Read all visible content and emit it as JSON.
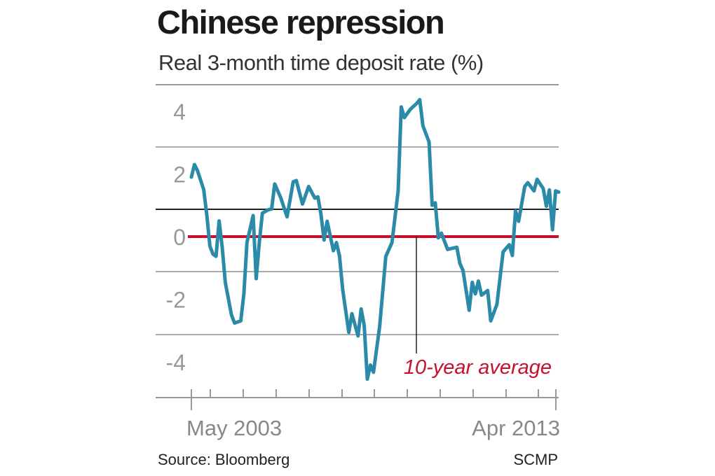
{
  "chart_data": {
    "type": "line",
    "title": "Chinese repression",
    "subtitle": "Real 3-month time deposit rate (%)",
    "y_tick_labels": [
      "4",
      "2",
      "0",
      "-2",
      "-4"
    ],
    "y_ticks": [
      4,
      2,
      0,
      -2,
      -4
    ],
    "x_tick_labels": [
      "May 2003",
      "Apr 2013"
    ],
    "xlim": [
      "2003-05",
      "2013-04"
    ],
    "ylim": [
      -5.1,
      4.8
    ],
    "grid": true,
    "reference_line": {
      "label": "10-year average",
      "value": 0,
      "color": "#c8102e"
    },
    "line_color": "#2b8aa8",
    "source": "Source: Bloomberg",
    "credit": "SCMP",
    "series": [
      {
        "x": [
          "2003-05",
          "2003-06",
          "2003-07",
          "2003-09",
          "2003-10",
          "2003-11",
          "2003-12",
          "2004-01",
          "2004-02",
          "2004-03",
          "2004-04",
          "2004-06",
          "2004-07",
          "2004-09",
          "2004-10",
          "2004-11",
          "2005-01",
          "2005-02",
          "2005-03",
          "2005-04",
          "2005-06",
          "2005-07",
          "2005-08",
          "2005-10",
          "2005-12",
          "2006-02",
          "2006-03",
          "2006-05",
          "2006-07",
          "2006-09",
          "2006-10",
          "2006-11",
          "2006-12",
          "2007-01",
          "2007-03",
          "2007-04",
          "2007-05",
          "2007-06",
          "2007-08",
          "2007-09",
          "2007-11",
          "2007-12",
          "2008-01",
          "2008-02",
          "2008-03",
          "2008-04",
          "2008-06",
          "2008-08",
          "2008-10",
          "2008-12",
          "2009-01",
          "2009-02",
          "2009-04",
          "2009-06",
          "2009-07",
          "2009-08",
          "2009-10",
          "2009-11",
          "2009-12",
          "2010-01",
          "2010-02",
          "2010-04",
          "2010-07",
          "2010-08",
          "2010-09",
          "2010-11",
          "2010-12",
          "2011-01",
          "2011-02",
          "2011-03",
          "2011-05",
          "2011-06",
          "2011-08",
          "2011-10",
          "2011-12",
          "2012-01",
          "2012-02",
          "2012-03",
          "2012-05",
          "2012-06",
          "2012-08",
          "2012-09",
          "2012-11",
          "2012-12",
          "2013-01",
          "2013-02",
          "2013-03",
          "2013-04"
        ],
        "y": [
          1.9,
          2.3,
          2.1,
          1.5,
          0.7,
          -0.3,
          -0.56,
          -0.63,
          0.5,
          -0.34,
          -1.46,
          -2.5,
          -2.76,
          -2.69,
          -1.83,
          -0.19,
          0.67,
          -1.34,
          -0.19,
          0.75,
          0.86,
          0.88,
          1.68,
          1.23,
          0.63,
          1.75,
          1.79,
          1.04,
          1.6,
          1.23,
          1.27,
          0.71,
          -0.11,
          0.49,
          -0.45,
          -0.19,
          -0.63,
          -1.68,
          -3.06,
          -2.46,
          -3.17,
          -2.31,
          -2.84,
          -4.55,
          -4.1,
          -4.33,
          -2.87,
          -0.63,
          -0.19,
          1.46,
          4.14,
          3.8,
          4.07,
          4.25,
          4.37,
          3.54,
          3.02,
          1.0,
          1.08,
          -0.04,
          0.11,
          -0.41,
          -0.34,
          -0.86,
          -1.08,
          -2.35,
          -1.46,
          -1.83,
          -1.42,
          -1.87,
          -1.72,
          -2.69,
          -2.16,
          -0.49,
          -0.26,
          -0.6,
          0.82,
          0.49,
          1.6,
          1.72,
          1.46,
          1.83,
          1.53,
          0.97,
          1.49,
          0.22,
          1.46,
          1.42
        ]
      }
    ]
  }
}
